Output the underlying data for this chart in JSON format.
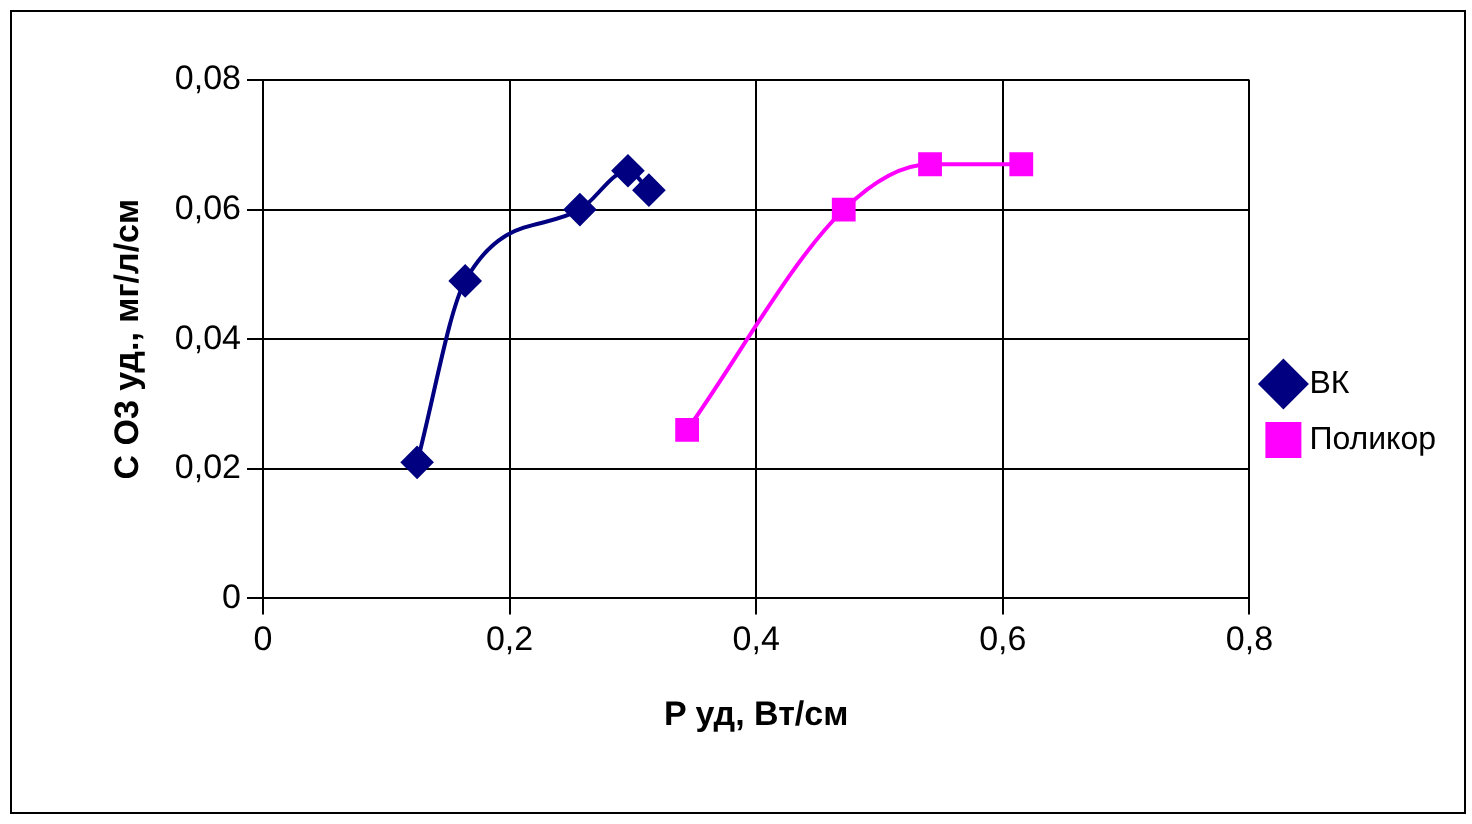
{
  "chart_data": {
    "type": "line",
    "xlabel": "P уд, Вт/см",
    "ylabel": "C O3 уд., мг/л/см",
    "xlim": [
      0,
      0.8
    ],
    "xticks": [
      0,
      {
        "value": 0.2,
        "label": "0,2"
      },
      {
        "value": 0.4,
        "label": "0,4"
      },
      {
        "value": 0.6,
        "label": "0,6"
      },
      {
        "value": 0.8,
        "label": "0,8"
      }
    ],
    "ylim": [
      0,
      0.08
    ],
    "yticks": [
      0,
      {
        "value": 0.02,
        "label": "0,02"
      },
      {
        "value": 0.04,
        "label": "0,04"
      },
      {
        "value": 0.06,
        "label": "0,06"
      },
      {
        "value": 0.08,
        "label": "0,08"
      }
    ],
    "grid": true,
    "legend": "right",
    "series": [
      {
        "name": "ВК",
        "color": "#000080",
        "marker": "diamond",
        "x": [
          0.125,
          0.164,
          0.257,
          0.296,
          0.313
        ],
        "values": [
          0.021,
          0.049,
          0.06,
          0.066,
          0.063
        ]
      },
      {
        "name": "Поликор",
        "color": "#ff00ff",
        "marker": "square",
        "x": [
          0.344,
          0.471,
          0.541,
          0.615
        ],
        "values": [
          0.026,
          0.06,
          0.067,
          0.067
        ]
      }
    ]
  }
}
